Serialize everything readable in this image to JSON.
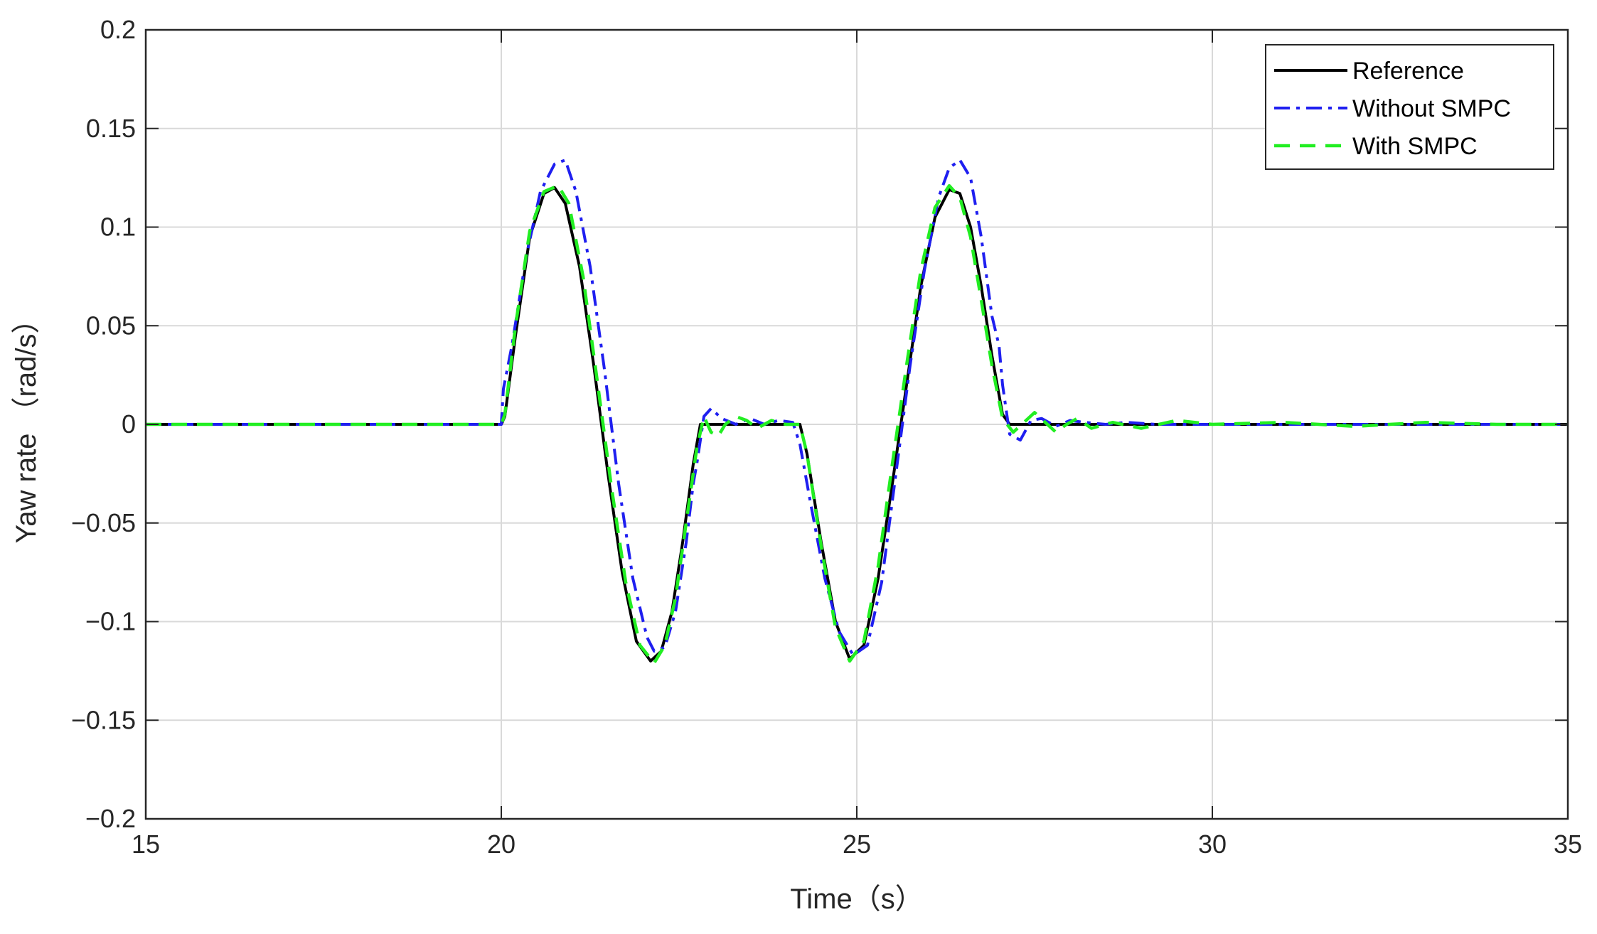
{
  "chart_data": {
    "type": "line",
    "title": "",
    "xlabel": "Time（s）",
    "ylabel": "Yaw rate （rad/s）",
    "xlim": [
      15,
      35
    ],
    "ylim": [
      -0.2,
      0.2
    ],
    "xticks": [
      15,
      20,
      25,
      30,
      35
    ],
    "xtick_labels": [
      "15",
      "20",
      "25",
      "30",
      "35"
    ],
    "yticks": [
      -0.2,
      -0.15,
      -0.1,
      -0.05,
      0,
      0.05,
      0.1,
      0.15,
      0.2
    ],
    "ytick_labels": [
      "−0.2",
      "−0.15",
      "−0.1",
      "−0.05",
      "0",
      "0.05",
      "0.1",
      "0.15",
      "0.2"
    ],
    "grid": true,
    "legend_position": "top-right",
    "series": [
      {
        "name": "Reference",
        "color": "#000000",
        "style": "solid",
        "x": [
          15,
          20,
          20.05,
          20.2,
          20.4,
          20.6,
          20.75,
          20.9,
          21.1,
          21.3,
          21.5,
          21.7,
          21.9,
          22.1,
          22.25,
          22.4,
          22.55,
          22.7,
          22.8,
          24.2,
          24.3,
          24.5,
          24.7,
          24.9,
          25.1,
          25.3,
          25.5,
          25.7,
          25.9,
          26.1,
          26.3,
          26.45,
          26.6,
          26.75,
          26.9,
          27.05,
          27.15,
          35
        ],
        "y": [
          0,
          0,
          0.004,
          0.045,
          0.095,
          0.117,
          0.12,
          0.112,
          0.08,
          0.03,
          -0.025,
          -0.075,
          -0.11,
          -0.12,
          -0.115,
          -0.095,
          -0.06,
          -0.02,
          0,
          0,
          -0.015,
          -0.06,
          -0.1,
          -0.119,
          -0.112,
          -0.078,
          -0.03,
          0.02,
          0.07,
          0.105,
          0.119,
          0.117,
          0.1,
          0.07,
          0.035,
          0.005,
          0,
          0
        ]
      },
      {
        "name": "Without SMPC",
        "color": "#1f1ff0",
        "style": "dashdot",
        "x": [
          15,
          20,
          20.03,
          20.15,
          20.35,
          20.55,
          20.75,
          20.9,
          21.05,
          21.25,
          21.45,
          21.65,
          21.85,
          22.05,
          22.15,
          22.3,
          22.45,
          22.6,
          22.7,
          22.75,
          22.85,
          22.95,
          23.1,
          23.3,
          23.5,
          23.7,
          23.9,
          24.1,
          24.2,
          24.25,
          24.35,
          24.55,
          24.75,
          24.95,
          25.15,
          25.35,
          25.55,
          25.75,
          25.95,
          26.15,
          26.3,
          26.45,
          26.6,
          26.75,
          26.9,
          27.0,
          27.05,
          27.15,
          27.3,
          27.45,
          27.6,
          27.8,
          28.0,
          28.2,
          28.5,
          28.8,
          29.2,
          29.6,
          30,
          35
        ],
        "y": [
          0,
          0,
          0.018,
          0.04,
          0.085,
          0.118,
          0.132,
          0.134,
          0.118,
          0.08,
          0.028,
          -0.03,
          -0.078,
          -0.108,
          -0.115,
          -0.113,
          -0.095,
          -0.06,
          -0.03,
          -0.02,
          0.004,
          0.008,
          0.003,
          0,
          0.003,
          0,
          0.002,
          0.001,
          -0.01,
          -0.02,
          -0.04,
          -0.078,
          -0.105,
          -0.117,
          -0.112,
          -0.08,
          -0.025,
          0.03,
          0.078,
          0.115,
          0.13,
          0.134,
          0.125,
          0.095,
          0.055,
          0.04,
          0.02,
          -0.005,
          -0.008,
          0.002,
          0.003,
          -0.001,
          0.002,
          0.001,
          0,
          0.001,
          0,
          0,
          0,
          0
        ]
      },
      {
        "name": "With SMPC",
        "color": "#22ee22",
        "style": "dashed",
        "x": [
          15,
          20,
          20.05,
          20.2,
          20.4,
          20.6,
          20.8,
          20.95,
          21.15,
          21.35,
          21.55,
          21.75,
          21.95,
          22.15,
          22.3,
          22.45,
          22.6,
          22.75,
          22.85,
          22.95,
          23.05,
          23.15,
          23.3,
          23.45,
          23.6,
          23.8,
          24.0,
          24.2,
          24.3,
          24.5,
          24.7,
          24.9,
          25.1,
          25.3,
          25.5,
          25.7,
          25.9,
          26.1,
          26.3,
          26.45,
          26.6,
          26.75,
          26.9,
          27.05,
          27.2,
          27.35,
          27.5,
          27.65,
          27.8,
          27.95,
          28.1,
          28.3,
          28.6,
          29.0,
          29.5,
          30,
          31,
          32,
          33,
          34,
          35
        ],
        "y": [
          0,
          0,
          0.005,
          0.05,
          0.098,
          0.118,
          0.121,
          0.112,
          0.075,
          0.022,
          -0.032,
          -0.08,
          -0.112,
          -0.121,
          -0.112,
          -0.088,
          -0.05,
          -0.012,
          0.004,
          -0.004,
          -0.006,
          0,
          0.004,
          0.002,
          -0.002,
          0.002,
          0,
          0,
          -0.015,
          -0.062,
          -0.103,
          -0.12,
          -0.11,
          -0.072,
          -0.02,
          0.03,
          0.078,
          0.11,
          0.121,
          0.115,
          0.095,
          0.063,
          0.03,
          0.003,
          -0.004,
          0.001,
          0.006,
          0.001,
          -0.004,
          0,
          0.003,
          -0.002,
          0.001,
          -0.002,
          0.002,
          0,
          0.001,
          -0.001,
          0.001,
          0,
          0
        ]
      }
    ]
  }
}
